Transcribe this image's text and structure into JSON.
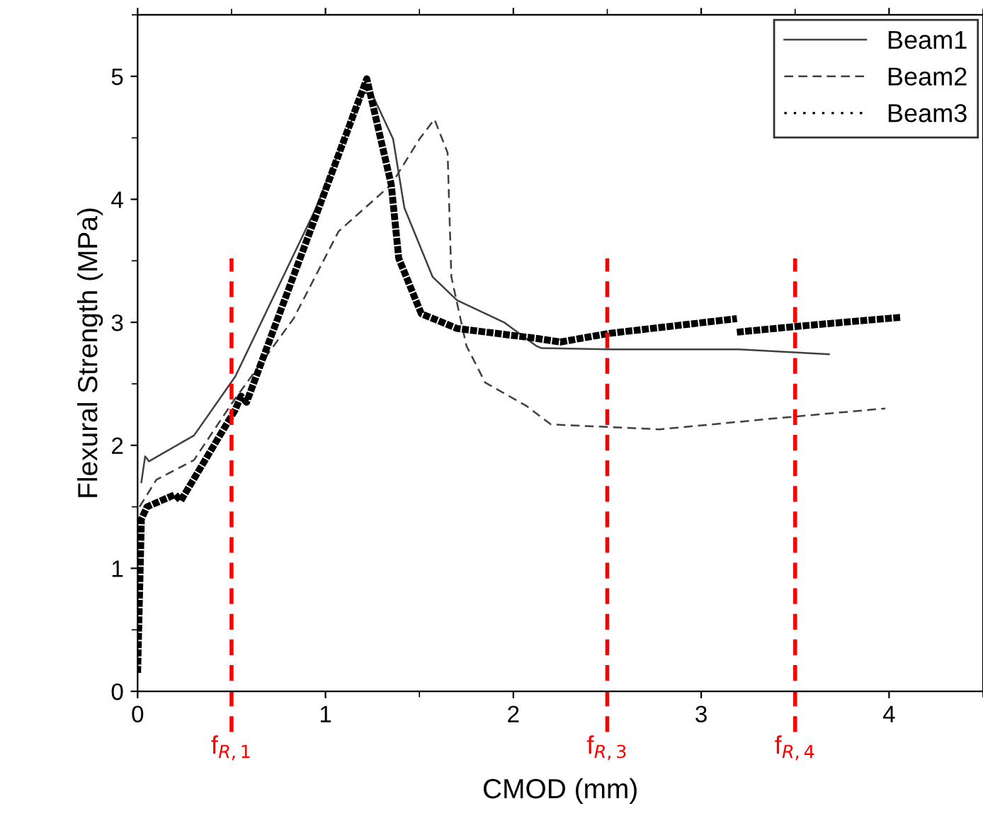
{
  "chart_data": {
    "type": "line",
    "xlabel": "CMOD (mm)",
    "ylabel": "Flexural Strength (MPa)",
    "xlim": [
      0,
      4.5
    ],
    "ylim": [
      0,
      5.5
    ],
    "xticks": [
      0,
      1,
      2,
      3,
      4
    ],
    "yticks": [
      0,
      1,
      2,
      3,
      4,
      5
    ],
    "grid": false,
    "legend": "top right",
    "marker": "none",
    "series": [
      {
        "name": "Beam1",
        "color": "#404040",
        "line_style": "solid",
        "x": [
          0.02,
          0.04,
          0.06,
          0.3,
          0.52,
          0.95,
          1.2,
          1.25,
          1.36,
          1.42,
          1.57,
          1.7,
          1.95,
          2.12,
          2.15,
          2.51,
          3.2,
          3.68
        ],
        "values": [
          1.7,
          1.91,
          1.87,
          2.08,
          2.56,
          3.93,
          4.87,
          4.85,
          4.49,
          3.93,
          3.37,
          3.18,
          3.0,
          2.81,
          2.79,
          2.78,
          2.78,
          2.74
        ]
      },
      {
        "name": "Beam2",
        "color": "#404040",
        "line_style": "dashed",
        "x": [
          0.01,
          0.1,
          0.3,
          0.51,
          0.83,
          1.07,
          1.35,
          1.5,
          1.58,
          1.65,
          1.67,
          1.75,
          1.85,
          2.07,
          2.2,
          2.78,
          3.4,
          3.98
        ],
        "values": [
          1.5,
          1.72,
          1.88,
          2.36,
          3.03,
          3.74,
          4.12,
          4.49,
          4.65,
          4.38,
          3.37,
          2.81,
          2.51,
          2.32,
          2.17,
          2.13,
          2.22,
          2.3
        ]
      },
      {
        "name": "Beam3",
        "color": "#000000",
        "line_style": "dotted",
        "x": [
          0.0,
          0.02,
          0.05,
          0.2,
          0.23,
          0.52,
          0.55,
          0.58,
          1.22,
          1.35,
          1.39,
          1.51,
          1.7,
          2.12,
          2.25,
          2.51,
          3.19,
          null,
          3.19,
          3.53,
          4.06
        ],
        "values": [
          0.15,
          1.4,
          1.5,
          1.6,
          1.55,
          2.29,
          2.4,
          2.35,
          4.98,
          4.12,
          3.52,
          3.07,
          2.95,
          2.87,
          2.84,
          2.91,
          3.03,
          null,
          2.92,
          2.97,
          3.04
        ]
      }
    ],
    "ref_lines": [
      {
        "axis": "x",
        "value": 0.5,
        "label": "f$_{R,1}$",
        "color": "#ff0000",
        "line_style": "dashed"
      },
      {
        "axis": "x",
        "value": 2.5,
        "label": "f$_{R,3}$",
        "color": "#ff0000",
        "line_style": "dashed"
      },
      {
        "axis": "x",
        "value": 3.5,
        "label": "f$_{R,4}$",
        "color": "#ff0000",
        "line_style": "dashed"
      }
    ]
  }
}
